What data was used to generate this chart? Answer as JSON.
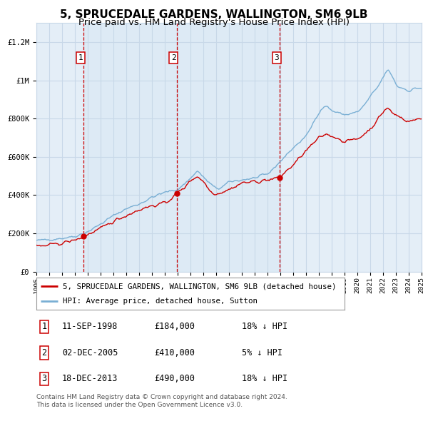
{
  "title": "5, SPRUCEDALE GARDENS, WALLINGTON, SM6 9LB",
  "subtitle": "Price paid vs. HM Land Registry's House Price Index (HPI)",
  "x_start_year": 1995,
  "x_end_year": 2025,
  "y_min": 0,
  "y_max": 1300000,
  "y_ticks": [
    0,
    200000,
    400000,
    600000,
    800000,
    1000000,
    1200000
  ],
  "y_tick_labels": [
    "£0",
    "£200K",
    "£400K",
    "£600K",
    "£800K",
    "£1M",
    "£1.2M"
  ],
  "hpi_color": "#7AAFD4",
  "price_color": "#CC0000",
  "bg_color": "#E4EEF7",
  "grid_color": "#C8D8E8",
  "vline_color": "#CC0000",
  "sale_dates": [
    1998.69,
    2005.92,
    2013.96
  ],
  "sale_prices": [
    184000,
    410000,
    490000
  ],
  "sale_labels": [
    "1",
    "2",
    "3"
  ],
  "legend_house_label": "5, SPRUCEDALE GARDENS, WALLINGTON, SM6 9LB (detached house)",
  "legend_hpi_label": "HPI: Average price, detached house, Sutton",
  "table_data": [
    [
      "1",
      "11-SEP-1998",
      "£184,000",
      "18% ↓ HPI"
    ],
    [
      "2",
      "02-DEC-2005",
      "£410,000",
      "5% ↓ HPI"
    ],
    [
      "3",
      "18-DEC-2013",
      "£490,000",
      "18% ↓ HPI"
    ]
  ],
  "footnote": "Contains HM Land Registry data © Crown copyright and database right 2024.\nThis data is licensed under the Open Government Licence v3.0.",
  "hpi_key_years": [
    1995.0,
    1996.0,
    1997.0,
    1998.0,
    1999.0,
    2000.0,
    2001.0,
    2002.0,
    2003.0,
    2004.0,
    2005.0,
    2006.0,
    2007.0,
    2007.5,
    2008.0,
    2009.0,
    2009.5,
    2010.0,
    2011.0,
    2012.0,
    2013.0,
    2014.0,
    2015.0,
    2016.0,
    2017.0,
    2017.5,
    2018.0,
    2019.0,
    2020.0,
    2020.5,
    2021.0,
    2021.5,
    2022.0,
    2022.3,
    2022.8,
    2023.0,
    2023.5,
    2024.0,
    2024.5,
    2025.0
  ],
  "hpi_key_vals": [
    162000,
    168000,
    175000,
    185000,
    210000,
    250000,
    295000,
    330000,
    355000,
    390000,
    415000,
    430000,
    490000,
    530000,
    490000,
    430000,
    445000,
    470000,
    480000,
    490000,
    510000,
    580000,
    650000,
    710000,
    840000,
    870000,
    840000,
    820000,
    835000,
    870000,
    920000,
    960000,
    1020000,
    1060000,
    1010000,
    970000,
    960000,
    945000,
    960000,
    960000
  ],
  "price_key_years": [
    1995.0,
    1996.0,
    1997.0,
    1998.0,
    1998.69,
    1999.0,
    2000.0,
    2001.0,
    2002.0,
    2003.0,
    2004.0,
    2005.0,
    2005.92,
    2006.0,
    2006.5,
    2007.0,
    2007.5,
    2008.0,
    2008.5,
    2009.0,
    2009.5,
    2010.0,
    2011.0,
    2012.0,
    2013.0,
    2013.96,
    2014.0,
    2015.0,
    2016.0,
    2017.0,
    2017.5,
    2018.0,
    2019.0,
    2020.0,
    2020.5,
    2021.0,
    2021.5,
    2022.0,
    2022.3,
    2022.8,
    2023.0,
    2023.5,
    2024.0,
    2024.5,
    2025.0
  ],
  "price_key_vals": [
    130000,
    138000,
    150000,
    165000,
    184000,
    195000,
    225000,
    265000,
    295000,
    325000,
    345000,
    358000,
    410000,
    415000,
    440000,
    480000,
    500000,
    470000,
    420000,
    405000,
    420000,
    430000,
    465000,
    470000,
    480000,
    490000,
    500000,
    560000,
    635000,
    700000,
    720000,
    710000,
    680000,
    695000,
    720000,
    750000,
    790000,
    840000,
    860000,
    820000,
    820000,
    800000,
    785000,
    795000,
    800000
  ]
}
